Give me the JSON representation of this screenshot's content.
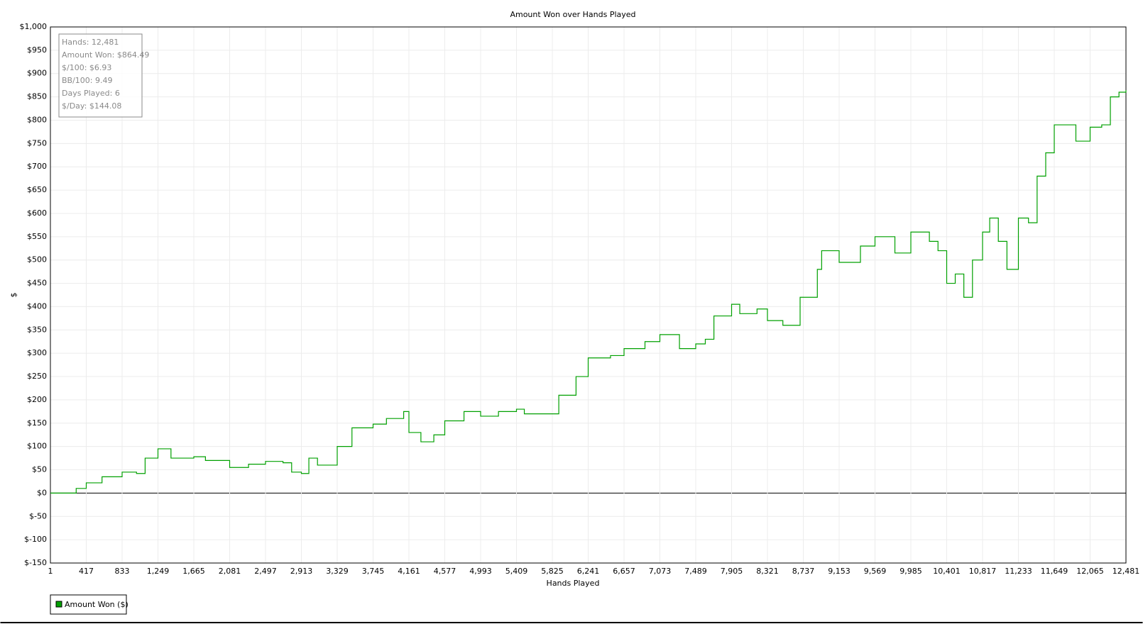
{
  "chart_data": {
    "type": "line",
    "title": "Amount Won over Hands Played",
    "x_label": "Hands Played",
    "y_label": "$",
    "annotations": [
      "Hands: 12,481",
      "Amount Won: $864.49",
      "$/100: $6.93",
      "BB/100: 9.49",
      "Days Played: 6",
      "$/Day: $144.08"
    ],
    "step": true,
    "grid": true,
    "legend": "bottom-left",
    "xlim": [
      1,
      12481
    ],
    "ylim": [
      -150,
      1000
    ],
    "xticks": [
      1,
      417,
      833,
      {
        "value": 1249,
        "label": "1,249"
      },
      {
        "value": 1665,
        "label": "1,665"
      },
      {
        "value": 2081,
        "label": "2,081"
      },
      {
        "value": 2497,
        "label": "2,497"
      },
      {
        "value": 2913,
        "label": "2,913"
      },
      {
        "value": 3329,
        "label": "3,329"
      },
      {
        "value": 3745,
        "label": "3,745"
      },
      {
        "value": 4161,
        "label": "4,161"
      },
      {
        "value": 4577,
        "label": "4,577"
      },
      {
        "value": 4993,
        "label": "4,993"
      },
      {
        "value": 5409,
        "label": "5,409"
      },
      {
        "value": 5825,
        "label": "5,825"
      },
      {
        "value": 6241,
        "label": "6,241"
      },
      {
        "value": 6657,
        "label": "6,657"
      },
      {
        "value": 7073,
        "label": "7,073"
      },
      {
        "value": 7489,
        "label": "7,489"
      },
      {
        "value": 7905,
        "label": "7,905"
      },
      {
        "value": 8321,
        "label": "8,321"
      },
      {
        "value": 8737,
        "label": "8,737"
      },
      {
        "value": 9153,
        "label": "9,153"
      },
      {
        "value": 9569,
        "label": "9,569"
      },
      {
        "value": 9985,
        "label": "9,985"
      },
      {
        "value": 10401,
        "label": "10,401"
      },
      {
        "value": 10817,
        "label": "10,817"
      },
      {
        "value": 11233,
        "label": "11,233"
      },
      {
        "value": 11649,
        "label": "11,649"
      },
      {
        "value": 12065,
        "label": "12,065"
      },
      {
        "value": 12481,
        "label": "12,481"
      }
    ],
    "yticks": [
      {
        "value": -150,
        "label": "$-150"
      },
      {
        "value": -100,
        "label": "$-100"
      },
      {
        "value": -50,
        "label": "$-50"
      },
      {
        "value": 0,
        "label": "$0"
      },
      {
        "value": 50,
        "label": "$50"
      },
      {
        "value": 100,
        "label": "$100"
      },
      {
        "value": 150,
        "label": "$150"
      },
      {
        "value": 200,
        "label": "$200"
      },
      {
        "value": 250,
        "label": "$250"
      },
      {
        "value": 300,
        "label": "$300"
      },
      {
        "value": 350,
        "label": "$350"
      },
      {
        "value": 400,
        "label": "$400"
      },
      {
        "value": 450,
        "label": "$450"
      },
      {
        "value": 500,
        "label": "$500"
      },
      {
        "value": 550,
        "label": "$550"
      },
      {
        "value": 600,
        "label": "$600"
      },
      {
        "value": 650,
        "label": "$650"
      },
      {
        "value": 700,
        "label": "$700"
      },
      {
        "value": 750,
        "label": "$750"
      },
      {
        "value": 800,
        "label": "$800"
      },
      {
        "value": 850,
        "label": "$850"
      },
      {
        "value": 900,
        "label": "$900"
      },
      {
        "value": 950,
        "label": "$950"
      },
      {
        "value": 1000,
        "label": "$1,000"
      }
    ],
    "x": [
      1,
      200,
      300,
      417,
      600,
      833,
      1000,
      1100,
      1249,
      1400,
      1665,
      1800,
      2081,
      2300,
      2497,
      2700,
      2800,
      2913,
      3000,
      3100,
      3329,
      3500,
      3745,
      3900,
      4100,
      4161,
      4300,
      4450,
      4577,
      4800,
      4993,
      5200,
      5409,
      5500,
      5825,
      5900,
      6100,
      6241,
      6500,
      6657,
      6900,
      7073,
      7300,
      7489,
      7600,
      7700,
      7905,
      8000,
      8200,
      8321,
      8500,
      8700,
      8800,
      8900,
      8950,
      9153,
      9400,
      9569,
      9700,
      9800,
      9985,
      10200,
      10300,
      10401,
      10500,
      10600,
      10700,
      10817,
      10900,
      11000,
      11100,
      11233,
      11350,
      11450,
      11550,
      11649,
      11800,
      11900,
      12065,
      12200,
      12300,
      12400,
      12481
    ],
    "series": [
      {
        "name": "Amount Won ($)",
        "color": "#00a000",
        "values": [
          0,
          0,
          10,
          22,
          35,
          45,
          42,
          75,
          95,
          75,
          78,
          70,
          55,
          62,
          68,
          65,
          45,
          42,
          75,
          60,
          100,
          140,
          148,
          160,
          175,
          130,
          110,
          125,
          155,
          175,
          165,
          175,
          180,
          170,
          170,
          210,
          250,
          290,
          295,
          310,
          325,
          340,
          310,
          320,
          330,
          380,
          405,
          385,
          395,
          370,
          360,
          420,
          420,
          480,
          520,
          495,
          530,
          550,
          550,
          515,
          560,
          540,
          520,
          450,
          470,
          420,
          500,
          560,
          590,
          540,
          480,
          590,
          580,
          680,
          730,
          790,
          790,
          755,
          785,
          790,
          850,
          860,
          864.49
        ]
      }
    ]
  }
}
